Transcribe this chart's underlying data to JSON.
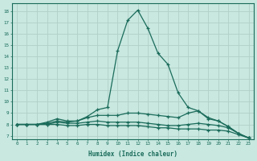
{
  "xlabel": "Humidex (Indice chaleur)",
  "bg_color": "#c8e8e0",
  "grid_color": "#b0d0c8",
  "line_color": "#1a6b5a",
  "xlim": [
    -0.5,
    23.5
  ],
  "ylim": [
    6.7,
    18.7
  ],
  "xticks": [
    0,
    1,
    2,
    3,
    4,
    5,
    6,
    7,
    8,
    9,
    10,
    11,
    12,
    13,
    14,
    15,
    16,
    17,
    18,
    19,
    20,
    21,
    22,
    23
  ],
  "yticks": [
    7,
    8,
    9,
    10,
    11,
    12,
    13,
    14,
    15,
    16,
    17,
    18
  ],
  "lines": [
    [
      8.0,
      8.0,
      8.0,
      8.1,
      8.3,
      8.2,
      8.3,
      8.7,
      9.3,
      9.5,
      14.5,
      17.2,
      18.1,
      16.5,
      14.3,
      13.3,
      10.8,
      9.5,
      9.2,
      8.5,
      8.3,
      7.8,
      7.2,
      6.8
    ],
    [
      8.0,
      8.0,
      8.0,
      8.2,
      8.5,
      8.3,
      8.3,
      8.6,
      8.8,
      8.8,
      8.8,
      9.0,
      9.0,
      8.9,
      8.8,
      8.7,
      8.6,
      9.0,
      9.2,
      8.6,
      8.3,
      7.8,
      7.2,
      6.8
    ],
    [
      8.0,
      8.0,
      8.0,
      8.0,
      8.2,
      8.1,
      8.1,
      8.2,
      8.3,
      8.2,
      8.2,
      8.2,
      8.2,
      8.1,
      8.0,
      7.9,
      7.9,
      8.0,
      8.1,
      8.0,
      7.9,
      7.7,
      7.2,
      6.8
    ],
    [
      8.0,
      8.0,
      8.0,
      8.0,
      8.0,
      7.9,
      7.9,
      8.0,
      8.0,
      7.9,
      7.9,
      7.9,
      7.9,
      7.8,
      7.7,
      7.7,
      7.6,
      7.6,
      7.6,
      7.5,
      7.5,
      7.4,
      7.1,
      6.8
    ]
  ]
}
